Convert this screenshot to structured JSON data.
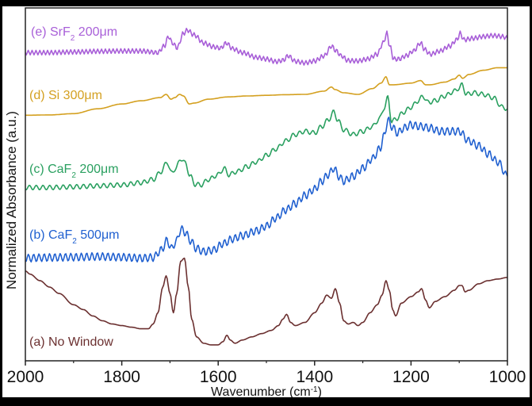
{
  "chart_data": {
    "type": "line",
    "title": "",
    "xlabel": "Wavenumber (cm",
    "xlabel_sup": "-1",
    "xlabel_end": ")",
    "ylabel": "Normalized Absorbance (a.u.)",
    "xlim": [
      2000,
      1000
    ],
    "ylim": [
      0,
      100
    ],
    "x_inverted": true,
    "grid": false,
    "legend": "inline-labels-left",
    "xticks": [
      2000,
      1800,
      1600,
      1400,
      1200,
      1000
    ],
    "xtick_labels": [
      "2000",
      "1800",
      "1600",
      "1400",
      "1200",
      "1000"
    ],
    "minor_xticks": [
      1900,
      1700,
      1500,
      1300,
      1100
    ],
    "yticks": [],
    "series": [
      {
        "name": "(e) SrF2 200μm",
        "label_main": "(e) SrF",
        "label_sub": "2",
        "label_end": " 200μm",
        "color": "#a85fd8",
        "oscillation": {
          "amplitude": 0.7,
          "period_cm": 8
        },
        "x": [
          2000,
          1950,
          1900,
          1850,
          1800,
          1760,
          1725,
          1712,
          1703,
          1695,
          1685,
          1672,
          1664,
          1650,
          1630,
          1610,
          1595,
          1583,
          1570,
          1550,
          1520,
          1500,
          1480,
          1465,
          1455,
          1440,
          1420,
          1400,
          1380,
          1365,
          1355,
          1345,
          1330,
          1310,
          1290,
          1270,
          1258,
          1250,
          1244,
          1236,
          1225,
          1210,
          1195,
          1180,
          1172,
          1160,
          1140,
          1120,
          1105,
          1098,
          1090,
          1070,
          1050,
          1030,
          1010,
          1000
        ],
        "y": [
          93.0,
          93.0,
          93.2,
          93.4,
          93.5,
          93.5,
          93.0,
          95.0,
          98.0,
          96.0,
          94.5,
          99.0,
          100.0,
          98.5,
          96.0,
          94.8,
          94.4,
          96.0,
          94.2,
          93.0,
          91.5,
          91.0,
          90.2,
          90.6,
          92.0,
          90.3,
          89.8,
          90.4,
          92.0,
          95.0,
          93.5,
          92.0,
          90.5,
          90.4,
          91.0,
          92.5,
          96.0,
          99.0,
          95.0,
          91.0,
          91.0,
          92.0,
          93.5,
          96.0,
          94.0,
          92.5,
          93.5,
          95.0,
          97.0,
          99.0,
          97.0,
          97.5,
          98.0,
          98.3,
          98.0,
          97.5
        ]
      },
      {
        "name": "(d) Si 300μm",
        "label_main": "(d) Si 300μm",
        "label_sub": "",
        "label_end": "",
        "color": "#d4a020",
        "oscillation": {
          "amplitude": 0,
          "period_cm": 8
        },
        "x": [
          2000,
          1950,
          1900,
          1850,
          1800,
          1760,
          1720,
          1708,
          1698,
          1690,
          1680,
          1672,
          1660,
          1650,
          1620,
          1580,
          1540,
          1500,
          1460,
          1420,
          1380,
          1365,
          1358,
          1340,
          1310,
          1280,
          1262,
          1252,
          1245,
          1235,
          1200,
          1180,
          1170,
          1160,
          1130,
          1110,
          1100,
          1093,
          1080,
          1050,
          1020,
          1000
        ],
        "y": [
          73.5,
          73.6,
          74.0,
          75.5,
          77.0,
          78.0,
          79.0,
          80.0,
          78.5,
          79.0,
          80.0,
          79.5,
          77.0,
          77.3,
          78.5,
          79.2,
          79.5,
          79.7,
          79.9,
          80.0,
          81.0,
          82.3,
          81.5,
          80.5,
          80.0,
          81.8,
          83.5,
          85.5,
          83.0,
          83.0,
          83.5,
          84.3,
          83.0,
          83.0,
          83.8,
          84.8,
          86.0,
          85.0,
          86.2,
          87.5,
          88.3,
          88.3
        ]
      },
      {
        "name": "(c) CaF2 200μm",
        "label_main": "(c) CaF",
        "label_sub": "2",
        "label_end": " 200μm",
        "color": "#2aa060",
        "oscillation": {
          "amplitude": 0.7,
          "period_cm": 14
        },
        "x": [
          2000,
          1950,
          1900,
          1850,
          1800,
          1760,
          1735,
          1718,
          1706,
          1697,
          1688,
          1677,
          1668,
          1658,
          1648,
          1636,
          1620,
          1600,
          1588,
          1578,
          1560,
          1540,
          1520,
          1500,
          1480,
          1460,
          1440,
          1420,
          1400,
          1385,
          1372,
          1360,
          1352,
          1340,
          1320,
          1300,
          1280,
          1265,
          1255,
          1248,
          1240,
          1230,
          1215,
          1200,
          1185,
          1175,
          1165,
          1150,
          1130,
          1110,
          1100,
          1094,
          1085,
          1070,
          1050,
          1030,
          1010,
          1000
        ],
        "y": [
          51.0,
          51.0,
          51.2,
          51.5,
          51.8,
          52.5,
          53.5,
          56.0,
          59.0,
          55.5,
          57.0,
          60.0,
          58.5,
          54.5,
          52.0,
          51.8,
          53.5,
          55.0,
          57.0,
          55.0,
          56.0,
          57.5,
          59.0,
          61.0,
          63.0,
          65.5,
          67.5,
          68.5,
          68.0,
          70.0,
          72.0,
          74.5,
          72.0,
          69.0,
          67.5,
          68.5,
          70.0,
          72.5,
          76.0,
          79.0,
          71.5,
          72.5,
          74.5,
          76.0,
          78.0,
          79.5,
          77.5,
          78.0,
          79.5,
          81.0,
          82.0,
          83.0,
          80.0,
          80.5,
          80.0,
          79.0,
          76.0,
          75.5
        ]
      },
      {
        "name": "(b) CaF2 500μm",
        "label_main": "(b) CaF",
        "label_sub": "2",
        "label_end": " 500μm",
        "color": "#2060d0",
        "oscillation": {
          "amplitude": 1.2,
          "period_cm": 11
        },
        "x": [
          2000,
          1950,
          1900,
          1850,
          1800,
          1760,
          1735,
          1718,
          1706,
          1697,
          1688,
          1677,
          1668,
          1658,
          1645,
          1630,
          1610,
          1590,
          1570,
          1550,
          1520,
          1500,
          1480,
          1460,
          1440,
          1420,
          1400,
          1385,
          1372,
          1360,
          1350,
          1340,
          1320,
          1300,
          1280,
          1265,
          1256,
          1248,
          1240,
          1228,
          1215,
          1200,
          1180,
          1160,
          1140,
          1120,
          1100,
          1080,
          1060,
          1040,
          1020,
          1000
        ],
        "y": [
          29.0,
          29.2,
          29.3,
          29.5,
          29.3,
          29.0,
          29.2,
          31.5,
          34.5,
          32.0,
          34.0,
          38.0,
          37.0,
          34.5,
          32.0,
          31.0,
          31.5,
          33.5,
          35.0,
          36.0,
          37.5,
          39.0,
          41.5,
          44.0,
          46.0,
          48.5,
          50.5,
          53.0,
          55.0,
          57.0,
          54.5,
          53.0,
          54.5,
          57.0,
          60.0,
          63.0,
          67.0,
          72.0,
          70.0,
          68.0,
          69.5,
          70.5,
          70.0,
          69.5,
          68.5,
          68.5,
          68.5,
          65.5,
          64.0,
          61.5,
          59.0,
          54.5
        ]
      },
      {
        "name": "(a) No Window",
        "label_main": "(a) No Window",
        "label_sub": "",
        "label_end": "",
        "color": "#6b3030",
        "oscillation": {
          "amplitude": 0,
          "period_cm": 8
        },
        "x": [
          2000,
          1990,
          1970,
          1950,
          1930,
          1900,
          1880,
          1860,
          1840,
          1820,
          1800,
          1780,
          1760,
          1745,
          1735,
          1725,
          1715,
          1708,
          1700,
          1693,
          1686,
          1678,
          1670,
          1662,
          1655,
          1645,
          1630,
          1615,
          1600,
          1590,
          1582,
          1575,
          1565,
          1550,
          1530,
          1510,
          1490,
          1475,
          1466,
          1458,
          1450,
          1440,
          1420,
          1400,
          1385,
          1375,
          1365,
          1357,
          1348,
          1340,
          1330,
          1320,
          1310,
          1300,
          1285,
          1270,
          1260,
          1252,
          1245,
          1238,
          1232,
          1220,
          1200,
          1185,
          1178,
          1170,
          1162,
          1150,
          1130,
          1110,
          1100,
          1094,
          1088,
          1080,
          1060,
          1040,
          1020,
          1000
        ],
        "y": [
          25.0,
          24.0,
          22.0,
          20.0,
          18.0,
          14.5,
          13.0,
          11.0,
          9.5,
          8.5,
          8.0,
          7.5,
          7.0,
          7.0,
          8.5,
          12.0,
          20.0,
          23.5,
          18.0,
          12.0,
          18.0,
          28.0,
          29.0,
          20.0,
          10.0,
          4.5,
          2.5,
          2.0,
          2.0,
          3.0,
          5.0,
          3.5,
          2.5,
          3.5,
          4.5,
          5.5,
          6.5,
          8.0,
          10.0,
          11.5,
          9.0,
          8.0,
          9.0,
          12.0,
          15.0,
          17.5,
          16.5,
          19.5,
          15.0,
          9.5,
          8.5,
          9.0,
          8.0,
          9.0,
          12.0,
          14.5,
          17.5,
          22.0,
          19.0,
          13.0,
          11.0,
          15.0,
          17.0,
          18.5,
          19.5,
          16.0,
          13.5,
          15.5,
          17.0,
          19.0,
          20.5,
          20.5,
          18.5,
          19.0,
          21.0,
          22.0,
          22.5,
          23.0
        ]
      }
    ]
  }
}
